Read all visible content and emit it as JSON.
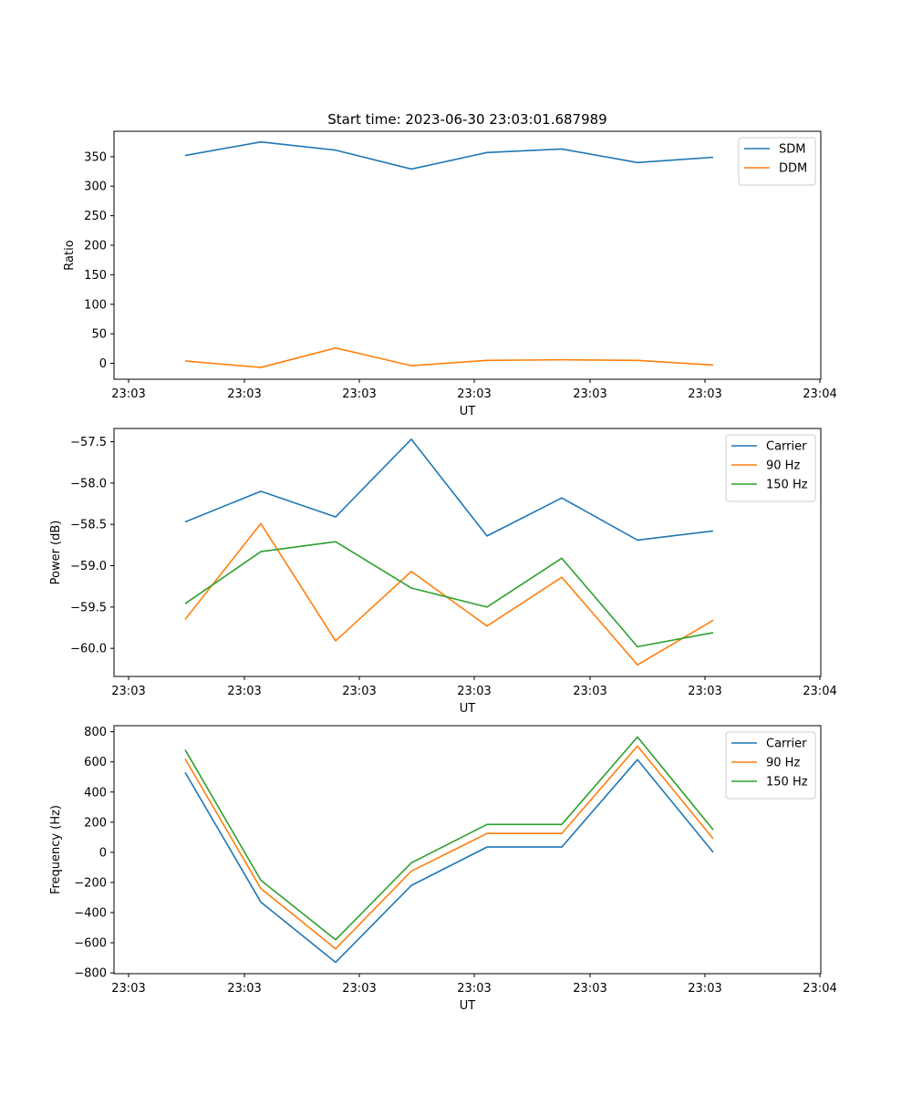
{
  "title": "Start time: 2023-06-30 23:03:01.687989",
  "colors": {
    "series1": "#1f77b4",
    "series2": "#ff7f0e",
    "series3": "#2ca02c"
  },
  "chart_data": [
    {
      "type": "line",
      "xlabel": "UT",
      "ylabel": "Ratio",
      "xticks": [
        "23:03",
        "23:03",
        "23:03",
        "23:03",
        "23:03",
        "23:03",
        "23:04"
      ],
      "ylim": [
        -27,
        393
      ],
      "yticks": [
        0,
        50,
        100,
        150,
        200,
        250,
        300,
        350
      ],
      "yticklabels": [
        "0",
        "50",
        "100",
        "150",
        "200",
        "250",
        "300",
        "350"
      ],
      "legend": "top-right",
      "series": [
        {
          "name": "SDM",
          "color": "#1f77b4",
          "values": [
            352,
            375,
            361,
            329,
            357,
            363,
            340,
            349
          ]
        },
        {
          "name": "DDM",
          "color": "#ff7f0e",
          "values": [
            4,
            -7,
            26,
            -4,
            5,
            6,
            5,
            -3
          ]
        }
      ]
    },
    {
      "type": "line",
      "xlabel": "UT",
      "ylabel": "Power (dB)",
      "xticks": [
        "23:03",
        "23:03",
        "23:03",
        "23:03",
        "23:03",
        "23:03",
        "23:04"
      ],
      "ylim": [
        -60.34,
        -57.34
      ],
      "yticks": [
        -60.0,
        -59.5,
        -59.0,
        -58.5,
        -58.0,
        -57.5
      ],
      "yticklabels": [
        "−60.0",
        "−59.5",
        "−59.0",
        "−58.5",
        "−58.0",
        "−57.5"
      ],
      "legend": "top-right",
      "series": [
        {
          "name": "Carrier",
          "color": "#1f77b4",
          "values": [
            -58.47,
            -58.1,
            -58.41,
            -57.47,
            -58.64,
            -58.18,
            -58.69,
            -58.58
          ]
        },
        {
          "name": "90 Hz",
          "color": "#ff7f0e",
          "values": [
            -59.65,
            -58.49,
            -59.91,
            -59.07,
            -59.73,
            -59.14,
            -60.2,
            -59.66
          ]
        },
        {
          "name": "150 Hz",
          "color": "#2ca02c",
          "values": [
            -59.46,
            -58.83,
            -58.71,
            -59.27,
            -59.5,
            -58.91,
            -59.98,
            -59.81
          ]
        }
      ]
    },
    {
      "type": "line",
      "xlabel": "UT",
      "ylabel": "Frequency (Hz)",
      "xticks": [
        "23:03",
        "23:03",
        "23:03",
        "23:03",
        "23:03",
        "23:03",
        "23:04"
      ],
      "ylim": [
        -805,
        840
      ],
      "yticks": [
        -800,
        -600,
        -400,
        -200,
        0,
        200,
        400,
        600,
        800
      ],
      "yticklabels": [
        "−800",
        "−600",
        "−400",
        "−200",
        "0",
        "200",
        "400",
        "600",
        "800"
      ],
      "legend": "top-right",
      "series": [
        {
          "name": "Carrier",
          "color": "#1f77b4",
          "values": [
            530,
            -330,
            -730,
            -220,
            35,
            35,
            615,
            0
          ]
        },
        {
          "name": "90 Hz",
          "color": "#ff7f0e",
          "values": [
            620,
            -240,
            -640,
            -125,
            125,
            125,
            705,
            90
          ]
        },
        {
          "name": "150 Hz",
          "color": "#2ca02c",
          "values": [
            680,
            -185,
            -580,
            -70,
            185,
            185,
            765,
            150
          ]
        }
      ]
    }
  ]
}
